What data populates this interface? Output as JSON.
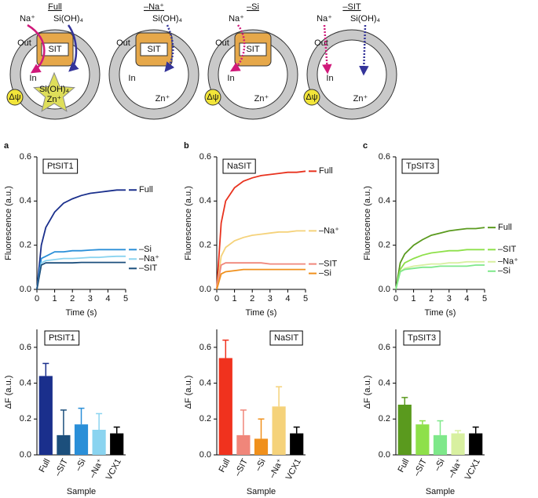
{
  "schematic": {
    "panels": [
      {
        "title": "Full",
        "na": "Na⁺",
        "si": "Si(OH)₄",
        "out": "Out",
        "sit": "SIT",
        "in": "In",
        "star_si": "Si(OH)₄",
        "star_zn": "Zn⁺",
        "dpsi": "Δψ"
      },
      {
        "title": "–Na⁺",
        "si": "Si(OH)₄",
        "out": "Out",
        "sit": "SIT",
        "in": "In",
        "zn": "Zn⁺"
      },
      {
        "title": "–Si",
        "na": "Na⁺",
        "out": "Out",
        "sit": "SIT",
        "in": "In",
        "zn": "Zn⁺",
        "dpsi": "Δψ"
      },
      {
        "title": "–SIT",
        "na": "Na⁺",
        "si": "Si(OH)₄",
        "out": "Out",
        "in": "In",
        "zn": "Zn⁺",
        "dpsi": "Δψ"
      }
    ]
  },
  "chart_data": [
    {
      "type": "line",
      "panel": "a",
      "title": "PtSIT1",
      "xlabel": "Time (s)",
      "ylabel": "Fluorescence (a.u.)",
      "x": [
        0,
        0.25,
        0.5,
        1,
        1.5,
        2,
        2.5,
        3,
        3.5,
        4,
        4.5,
        5
      ],
      "xlim": [
        0,
        5
      ],
      "xticks": [
        0,
        1,
        2,
        3,
        4,
        5
      ],
      "ylim": [
        0,
        0.6
      ],
      "yticks": [
        {
          "value": 0,
          "label": "0.0"
        },
        0.2,
        0.4,
        0.6
      ],
      "series": [
        {
          "name": "Full",
          "color": "#1a2f8c",
          "values": [
            0,
            0.2,
            0.28,
            0.35,
            0.39,
            0.41,
            0.425,
            0.435,
            0.44,
            0.445,
            0.45,
            0.45
          ]
        },
        {
          "name": "–Si",
          "color": "#2a8fd8",
          "values": [
            0,
            0.14,
            0.15,
            0.17,
            0.17,
            0.175,
            0.175,
            0.178,
            0.18,
            0.18,
            0.18,
            0.18
          ]
        },
        {
          "name": "–Na⁺",
          "color": "#8ad4f0",
          "values": [
            0,
            0.12,
            0.13,
            0.135,
            0.14,
            0.14,
            0.142,
            0.145,
            0.145,
            0.148,
            0.15,
            0.15
          ]
        },
        {
          "name": "–SIT",
          "color": "#1c4f7c",
          "values": [
            0,
            0.11,
            0.12,
            0.12,
            0.12,
            0.12,
            0.122,
            0.122,
            0.122,
            0.122,
            0.122,
            0.122
          ]
        }
      ]
    },
    {
      "type": "line",
      "panel": "b",
      "title": "NaSIT",
      "xlabel": "Time (s)",
      "ylabel": "Fluorescence (a.u.)",
      "x": [
        0,
        0.25,
        0.5,
        1,
        1.5,
        2,
        2.5,
        3,
        3.5,
        4,
        4.5,
        5
      ],
      "xlim": [
        0,
        5
      ],
      "xticks": [
        0,
        1,
        2,
        3,
        4,
        5
      ],
      "ylim": [
        0,
        0.6
      ],
      "yticks": [
        {
          "value": 0,
          "label": "0.0"
        },
        0.2,
        0.4,
        0.6
      ],
      "series": [
        {
          "name": "Full",
          "color": "#e8321e",
          "values": [
            0,
            0.3,
            0.4,
            0.46,
            0.49,
            0.505,
            0.515,
            0.52,
            0.525,
            0.53,
            0.53,
            0.535
          ]
        },
        {
          "name": "–Na⁺",
          "color": "#f5d27a",
          "values": [
            0,
            0.15,
            0.19,
            0.22,
            0.235,
            0.245,
            0.25,
            0.255,
            0.26,
            0.26,
            0.265,
            0.265
          ]
        },
        {
          "name": "–SIT",
          "color": "#f0867a",
          "values": [
            0,
            0.11,
            0.12,
            0.12,
            0.12,
            0.12,
            0.12,
            0.115,
            0.115,
            0.115,
            0.115,
            0.115
          ]
        },
        {
          "name": "–Si",
          "color": "#f0901c",
          "values": [
            0,
            0.07,
            0.08,
            0.085,
            0.09,
            0.09,
            0.09,
            0.09,
            0.09,
            0.09,
            0.09,
            0.09
          ]
        }
      ]
    },
    {
      "type": "line",
      "panel": "c",
      "title": "TpSIT3",
      "xlabel": "Time (s)",
      "ylabel": "Fluorescence (a.u.)",
      "x": [
        0,
        0.25,
        0.5,
        1,
        1.5,
        2,
        2.5,
        3,
        3.5,
        4,
        4.5,
        5
      ],
      "xlim": [
        0,
        5
      ],
      "xticks": [
        0,
        1,
        2,
        3,
        4,
        5
      ],
      "ylim": [
        0,
        0.6
      ],
      "yticks": [
        {
          "value": 0,
          "label": "0.0"
        },
        0.2,
        0.4,
        0.6
      ],
      "series": [
        {
          "name": "Full",
          "color": "#5a9a1e",
          "values": [
            0,
            0.12,
            0.16,
            0.2,
            0.225,
            0.245,
            0.255,
            0.265,
            0.27,
            0.275,
            0.275,
            0.28
          ]
        },
        {
          "name": "–SIT",
          "color": "#8ee04a",
          "values": [
            0,
            0.09,
            0.12,
            0.14,
            0.155,
            0.165,
            0.17,
            0.175,
            0.175,
            0.18,
            0.18,
            0.18
          ]
        },
        {
          "name": "–Na⁺",
          "color": "#d8f0a0",
          "values": [
            0,
            0.08,
            0.095,
            0.105,
            0.11,
            0.115,
            0.115,
            0.12,
            0.12,
            0.125,
            0.125,
            0.125
          ]
        },
        {
          "name": "–Si",
          "color": "#7ee88a",
          "values": [
            0,
            0.08,
            0.09,
            0.095,
            0.1,
            0.1,
            0.105,
            0.105,
            0.105,
            0.105,
            0.11,
            0.11
          ]
        }
      ]
    },
    {
      "type": "bar",
      "title": "PtSIT1",
      "xlabel": "Sample",
      "ylabel": "ΔF (a.u.)",
      "categories": [
        "Full",
        "–SIT",
        "–Si",
        "–Na⁺",
        "VCX1"
      ],
      "values": [
        0.44,
        0.11,
        0.17,
        0.14,
        0.12
      ],
      "errors": [
        0.07,
        0.14,
        0.09,
        0.09,
        0.035
      ],
      "colors": [
        "#1a2f8c",
        "#1c4f7c",
        "#2a8fd8",
        "#8ad4f0",
        "#000000"
      ],
      "ylim": [
        0,
        0.7
      ],
      "yticks": [
        {
          "value": 0,
          "label": "0.0"
        },
        0.2,
        0.4,
        0.6
      ]
    },
    {
      "type": "bar",
      "title": "NaSIT",
      "xlabel": "Sample",
      "ylabel": "ΔF (a.u.)",
      "categories": [
        "Full",
        "–SIT",
        "–Si",
        "–Na⁺",
        "VCX1"
      ],
      "values": [
        0.54,
        0.11,
        0.09,
        0.27,
        0.12
      ],
      "errors": [
        0.1,
        0.14,
        0.11,
        0.11,
        0.035
      ],
      "colors": [
        "#f0321e",
        "#f0867a",
        "#f0901c",
        "#f5d27a",
        "#000000"
      ],
      "ylim": [
        0,
        0.7
      ],
      "yticks": [
        {
          "value": 0,
          "label": "0.0"
        },
        0.2,
        0.4,
        0.6
      ]
    },
    {
      "type": "bar",
      "title": "TpSIT3",
      "xlabel": "Sample",
      "ylabel": "ΔF (a.u.)",
      "categories": [
        "Full",
        "–SIT",
        "–Si",
        "–Na⁺",
        "VCX1"
      ],
      "values": [
        0.28,
        0.17,
        0.11,
        0.12,
        0.12
      ],
      "errors": [
        0.04,
        0.02,
        0.08,
        0.015,
        0.035
      ],
      "colors": [
        "#5a9a1e",
        "#8ee04a",
        "#7ee88a",
        "#d8f0a0",
        "#000000"
      ],
      "ylim": [
        0,
        0.7
      ],
      "yticks": [
        {
          "value": 0,
          "label": "0.0"
        },
        0.2,
        0.4,
        0.6
      ]
    }
  ]
}
